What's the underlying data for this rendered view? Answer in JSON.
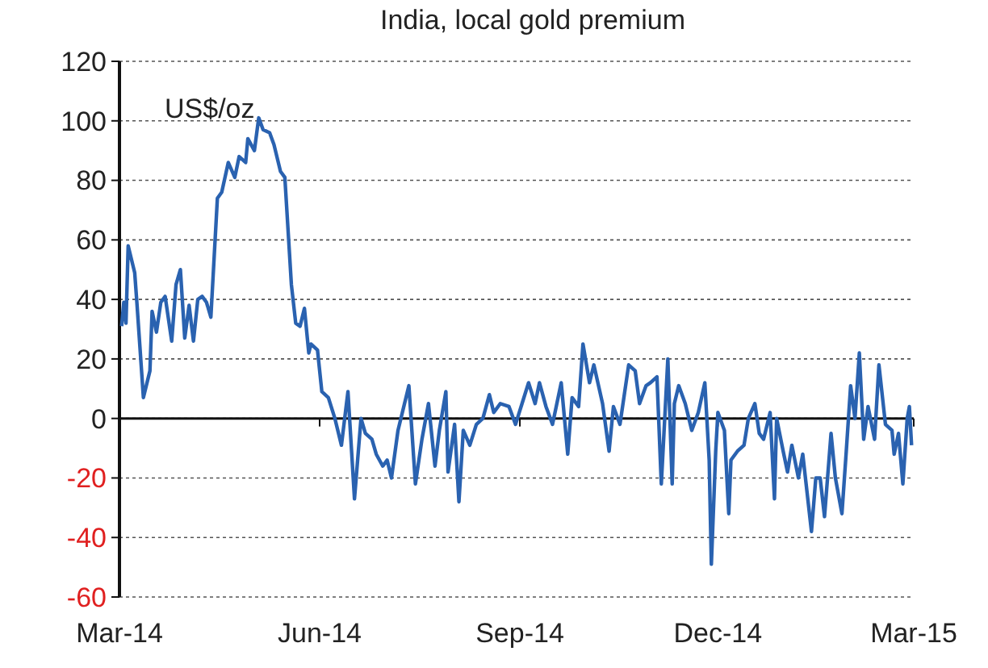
{
  "chart_data": {
    "type": "line",
    "title": "India, local gold premium",
    "ylabel": "US$/oz",
    "x": [
      "2014-03-02",
      "2014-03-03",
      "2014-03-04",
      "2014-03-05",
      "2014-03-08",
      "2014-03-09",
      "2014-03-12",
      "2014-03-15",
      "2014-03-16",
      "2014-03-18",
      "2014-03-20",
      "2014-03-22",
      "2014-03-25",
      "2014-03-27",
      "2014-03-29",
      "2014-03-31",
      "2014-04-02",
      "2014-04-04",
      "2014-04-06",
      "2014-04-08",
      "2014-04-10",
      "2014-04-12",
      "2014-04-15",
      "2014-04-17",
      "2014-04-20",
      "2014-04-23",
      "2014-04-25",
      "2014-04-28",
      "2014-04-29",
      "2014-05-02",
      "2014-05-04",
      "2014-05-06",
      "2014-05-09",
      "2014-05-11",
      "2014-05-14",
      "2014-05-16",
      "2014-05-19",
      "2014-05-21",
      "2014-05-23",
      "2014-05-25",
      "2014-05-27",
      "2014-05-28",
      "2014-05-31",
      "2014-06-02",
      "2014-06-05",
      "2014-06-08",
      "2014-06-11",
      "2014-06-14",
      "2014-06-17",
      "2014-06-20",
      "2014-06-22",
      "2014-06-25",
      "2014-06-27",
      "2014-06-30",
      "2014-07-02",
      "2014-07-04",
      "2014-07-07",
      "2014-07-12",
      "2014-07-15",
      "2014-07-18",
      "2014-07-21",
      "2014-07-24",
      "2014-07-26",
      "2014-07-29",
      "2014-07-30",
      "2014-08-02",
      "2014-08-04",
      "2014-08-06",
      "2014-08-09",
      "2014-08-12",
      "2014-08-15",
      "2014-08-18",
      "2014-08-20",
      "2014-08-23",
      "2014-08-27",
      "2014-08-30",
      "2014-09-02",
      "2014-09-05",
      "2014-09-08",
      "2014-09-10",
      "2014-09-13",
      "2014-09-16",
      "2014-09-20",
      "2014-09-23",
      "2014-09-25",
      "2014-09-28",
      "2014-09-30",
      "2014-10-03",
      "2014-10-05",
      "2014-10-09",
      "2014-10-12",
      "2014-10-14",
      "2014-10-17",
      "2014-10-21",
      "2014-10-24",
      "2014-10-26",
      "2014-10-29",
      "2014-10-31",
      "2014-11-03",
      "2014-11-05",
      "2014-11-08",
      "2014-11-10",
      "2014-11-11",
      "2014-11-13",
      "2014-11-16",
      "2014-11-19",
      "2014-11-22",
      "2014-11-25",
      "2014-11-27",
      "2014-11-28",
      "2014-11-30",
      "2014-12-01",
      "2014-12-04",
      "2014-12-06",
      "2014-12-07",
      "2014-12-10",
      "2014-12-13",
      "2014-12-15",
      "2014-12-18",
      "2014-12-20",
      "2014-12-22",
      "2014-12-25",
      "2014-12-27",
      "2014-12-28",
      "2014-12-31",
      "2015-01-02",
      "2015-01-04",
      "2015-01-07",
      "2015-01-09",
      "2015-01-13",
      "2015-01-15",
      "2015-01-17",
      "2015-01-19",
      "2015-01-22",
      "2015-01-24",
      "2015-01-27",
      "2015-01-29",
      "2015-01-31",
      "2015-02-02",
      "2015-02-04",
      "2015-02-06",
      "2015-02-08",
      "2015-02-11",
      "2015-02-13",
      "2015-02-16",
      "2015-02-19",
      "2015-02-20",
      "2015-02-22",
      "2015-02-24",
      "2015-02-26",
      "2015-02-27",
      "2015-02-28"
    ],
    "series": [
      {
        "color": "#2a62b0",
        "values": [
          31,
          39,
          32,
          58,
          49,
          39,
          7,
          16,
          36,
          29,
          39,
          41,
          26,
          45,
          50,
          27,
          38,
          26,
          40,
          41,
          39,
          34,
          74,
          76,
          86,
          81,
          88,
          86,
          94,
          90,
          101,
          97,
          96,
          92,
          83,
          81,
          45,
          32,
          31,
          37,
          22,
          25,
          23,
          9,
          7,
          0,
          -9,
          9,
          -27,
          0,
          -5,
          -7,
          -12,
          -16,
          -14,
          -20,
          -4,
          11,
          -22,
          -7,
          5,
          -16,
          -4,
          9,
          -18,
          -2,
          -28,
          -4,
          -9,
          -2,
          0,
          8,
          2,
          5,
          4,
          -2,
          5,
          12,
          5,
          12,
          4,
          -2,
          12,
          -12,
          7,
          4,
          25,
          12,
          18,
          5,
          -11,
          4,
          -2,
          18,
          16,
          5,
          11,
          12,
          14,
          -22,
          20,
          -22,
          5,
          11,
          5,
          -4,
          2,
          12,
          -14,
          -49,
          -11,
          2,
          -4,
          -32,
          -14,
          -11,
          -9,
          0,
          5,
          -5,
          -7,
          2,
          -27,
          0,
          -11,
          -18,
          -9,
          -20,
          -12,
          -38,
          -20,
          -20,
          -33,
          -5,
          -20,
          -32,
          -11,
          11,
          0,
          22,
          -7,
          4,
          -7,
          18,
          -2,
          -4,
          -12,
          -5,
          -22,
          0,
          4,
          -9
        ]
      }
    ],
    "xlim": [
      "2014-03-01",
      "2015-03-01"
    ],
    "xticks": [
      {
        "value": "2014-03-01",
        "label": "Mar-14"
      },
      {
        "value": "2014-06-01",
        "label": "Jun-14"
      },
      {
        "value": "2014-09-01",
        "label": "Sep-14"
      },
      {
        "value": "2014-12-01",
        "label": "Dec-14"
      },
      {
        "value": "2015-03-01",
        "label": "Mar-15"
      }
    ],
    "ylim": [
      -60,
      120
    ],
    "yticks": [
      -60,
      -40,
      -20,
      0,
      20,
      40,
      60,
      80,
      100,
      120
    ],
    "grid": "y",
    "marker": "none",
    "line_style": "solid"
  }
}
